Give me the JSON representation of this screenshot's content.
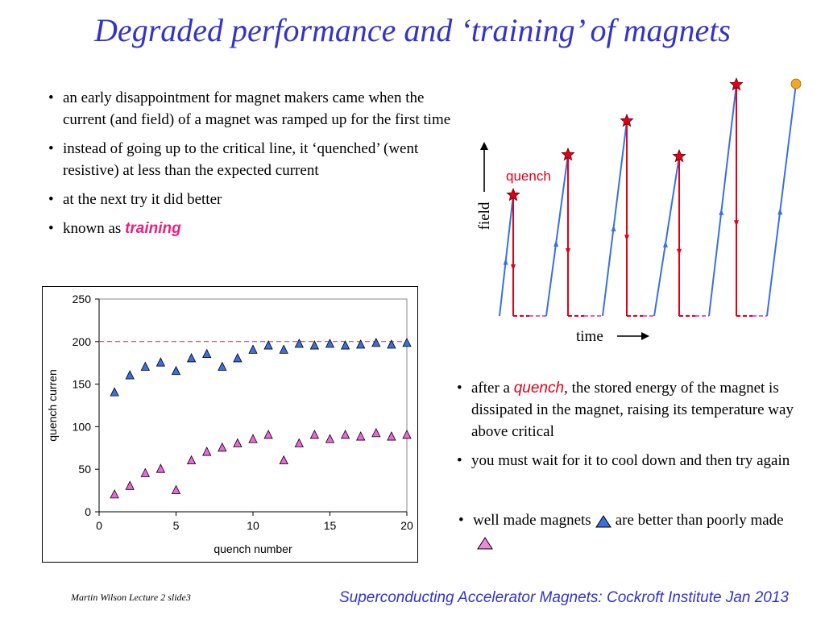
{
  "title": "Degraded performance and ‘training’ of magnets",
  "bullets_top": [
    {
      "text": "an early disappointment for magnet makers came when the current (and field) of a magnet was ramped up for the first time"
    },
    {
      "text": "instead of going up to the critical line, it ‘quenched’ (went resistive) at less than the expected current"
    },
    {
      "text": "at the next try it did better"
    },
    {
      "prefix": "known as ",
      "highlight": "training"
    }
  ],
  "bullets_right": [
    {
      "prefix": "after a ",
      "highlight": "quench",
      "suffix": ", the stored energy of the magnet is dissipated in the magnet, raising its temperature way above critical"
    },
    {
      "text": "you must wait for it to cool down and then try again"
    },
    {
      "before": "well made magnets",
      "middle": "are better than poorly made"
    }
  ],
  "diagram": {
    "field_label": "field",
    "time_label": "time",
    "quench_label": "quench",
    "colors": {
      "ramp": "#3b6fe0",
      "quench": "#e0001b",
      "star": "#e0001b",
      "dashed_pink": "#e060d0",
      "end_dot": "#f5a623"
    }
  },
  "footer_left": "Martin Wilson Lecture 2 slide3",
  "footer_right": "Superconducting Accelerator Magnets:  Cockroft Institute Jan 2013",
  "chart_data": {
    "type": "scatter",
    "xlabel": "quench number",
    "ylabel": "quench curren",
    "xlim": [
      0,
      20
    ],
    "ylim": [
      0,
      250
    ],
    "xticks": [
      0,
      5,
      10,
      15,
      20
    ],
    "yticks": [
      0,
      50,
      100,
      150,
      200,
      250
    ],
    "reference_line": {
      "y": 200,
      "style": "dashed",
      "color": "#d62728"
    },
    "grid": false,
    "series": [
      {
        "marker": "triangle",
        "color": "#3b6fe0",
        "x": [
          1,
          2,
          3,
          4,
          5,
          6,
          7,
          8,
          9,
          10,
          11,
          12,
          13,
          14,
          15,
          16,
          17,
          18,
          19,
          20
        ],
        "y": [
          140,
          160,
          170,
          175,
          165,
          180,
          185,
          170,
          180,
          190,
          195,
          190,
          197,
          195,
          197,
          195,
          196,
          198,
          196,
          198
        ]
      },
      {
        "marker": "triangle",
        "color": "#e060d0",
        "x": [
          1,
          2,
          3,
          4,
          5,
          6,
          7,
          8,
          9,
          10,
          11,
          12,
          13,
          14,
          15,
          16,
          17,
          18,
          19,
          20
        ],
        "y": [
          20,
          30,
          45,
          50,
          25,
          60,
          70,
          75,
          80,
          85,
          90,
          60,
          80,
          90,
          85,
          90,
          88,
          92,
          88,
          90
        ]
      }
    ]
  }
}
